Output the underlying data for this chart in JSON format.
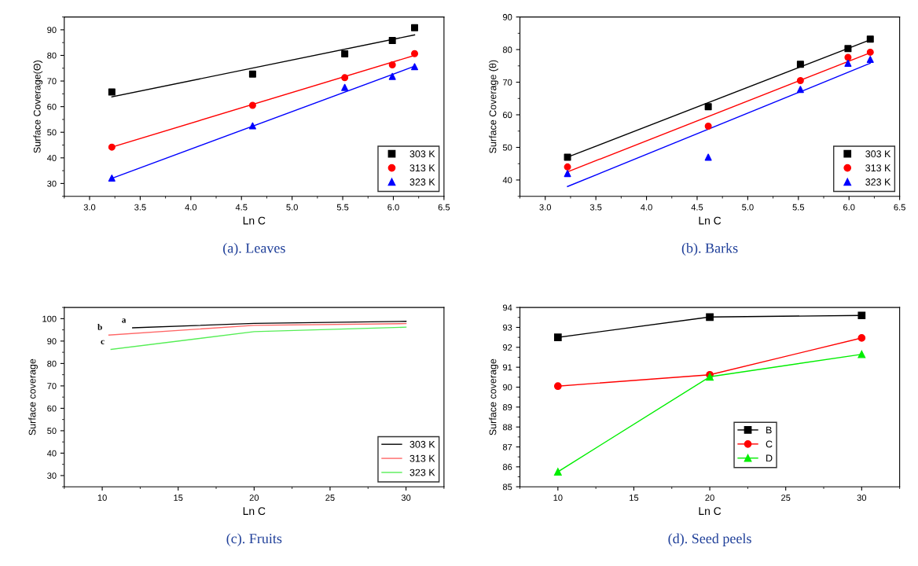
{
  "chart_data": [
    {
      "type": "scatter",
      "xlabel": "Ln C",
      "ylabel": "Surface Coverage(Θ)",
      "annotations": [
        "(a). Leaves"
      ],
      "xlim": [
        2.75,
        6.5
      ],
      "xticks": [
        {
          "value": 3,
          "label": "3.0"
        },
        3.5,
        {
          "value": 4,
          "label": "4.0"
        },
        4.5,
        {
          "value": 5,
          "label": "5.0"
        },
        5.5,
        {
          "value": 6,
          "label": "6.0"
        },
        6.5
      ],
      "ylim": [
        25,
        95
      ],
      "yticks": [
        30,
        40,
        50,
        60,
        70,
        80,
        90
      ],
      "legend": "lower right",
      "grid": false,
      "series": [
        {
          "name": "303 K",
          "color": "#000000",
          "marker": "square",
          "x": [
            3.22,
            4.61,
            5.52,
            5.99,
            6.21
          ],
          "values": [
            65.7,
            72.7,
            80.6,
            85.8,
            90.8
          ]
        },
        {
          "name": "313 K",
          "color": "#ff0000",
          "marker": "circle",
          "x": [
            3.22,
            4.61,
            5.52,
            5.99,
            6.21
          ],
          "values": [
            44.2,
            60.5,
            71.3,
            76.3,
            80.7
          ]
        },
        {
          "name": "323 K",
          "color": "#0000ff",
          "marker": "triangle",
          "x": [
            3.22,
            4.61,
            5.52,
            5.99,
            6.21
          ],
          "values": [
            32.1,
            52.5,
            67.5,
            71.8,
            75.6
          ]
        },
        {
          "type": "line",
          "color": "#000000",
          "x": [
            3.22,
            6.21
          ],
          "values": [
            63.8,
            88.0
          ]
        },
        {
          "type": "line",
          "color": "#ff0000",
          "x": [
            3.22,
            6.21
          ],
          "values": [
            44.2,
            80.0
          ]
        },
        {
          "type": "line",
          "color": "#0000ff",
          "x": [
            3.22,
            6.21
          ],
          "values": [
            32.0,
            75.8
          ]
        }
      ]
    },
    {
      "type": "scatter",
      "xlabel": "Ln C",
      "ylabel": "Surface Coverage (θ)",
      "annotations": [
        "(b). Barks"
      ],
      "xlim": [
        2.75,
        6.5
      ],
      "xticks": [
        {
          "value": 3,
          "label": "3.0"
        },
        3.5,
        {
          "value": 4,
          "label": "4.0"
        },
        4.5,
        {
          "value": 5,
          "label": "5.0"
        },
        5.5,
        {
          "value": 6,
          "label": "6.0"
        },
        6.5
      ],
      "ylim": [
        35,
        90
      ],
      "yticks": [
        40,
        50,
        60,
        70,
        80,
        90
      ],
      "legend": "lower right",
      "grid": false,
      "series": [
        {
          "name": "303 K",
          "color": "#000000",
          "marker": "square",
          "x": [
            3.22,
            4.61,
            5.52,
            5.99,
            6.21
          ],
          "values": [
            47.0,
            62.5,
            75.5,
            80.3,
            83.2
          ]
        },
        {
          "name": "313 K",
          "color": "#ff0000",
          "marker": "circle",
          "x": [
            3.22,
            4.61,
            5.52,
            5.99,
            6.21
          ],
          "values": [
            44.0,
            56.5,
            70.5,
            77.6,
            79.2
          ]
        },
        {
          "name": "323 K",
          "color": "#0000ff",
          "marker": "triangle",
          "x": [
            3.22,
            4.61,
            5.52,
            5.99,
            6.21
          ],
          "values": [
            42.0,
            47.0,
            67.8,
            75.8,
            77.0
          ]
        },
        {
          "type": "line",
          "color": "#000000",
          "x": [
            3.22,
            6.21
          ],
          "values": [
            47.0,
            83.0
          ]
        },
        {
          "type": "line",
          "color": "#ff0000",
          "x": [
            3.22,
            6.21
          ],
          "values": [
            42.5,
            79.0
          ]
        },
        {
          "type": "line",
          "color": "#0000ff",
          "x": [
            3.22,
            6.21
          ],
          "values": [
            38.0,
            75.8
          ]
        }
      ]
    },
    {
      "type": "line",
      "xlabel": "Ln C",
      "ylabel": "Surface coverage",
      "xlim": [
        7.5,
        32.5
      ],
      "xticks": [
        10,
        15,
        20,
        25,
        30
      ],
      "ylim": [
        25,
        105
      ],
      "yticks": [
        30,
        40,
        50,
        60,
        70,
        80,
        90,
        100
      ],
      "legend": "lower right",
      "grid": false,
      "marker": "none",
      "annotations": [
        "a",
        "b",
        "c",
        "(c). Fruits"
      ],
      "series": [
        {
          "name": "303 K",
          "color": "#000000",
          "x": [
            12.0,
            20,
            30
          ],
          "values": [
            95.9,
            97.9,
            98.8
          ]
        },
        {
          "name": "313 K",
          "color": "#ff6666",
          "x": [
            10.44,
            20,
            30
          ],
          "values": [
            92.7,
            97.0,
            97.8
          ]
        },
        {
          "name": "323 K",
          "color": "#55ee55",
          "x": [
            10.58,
            20,
            30
          ],
          "values": [
            86.3,
            94.2,
            96.2
          ]
        }
      ]
    },
    {
      "type": "line",
      "xlabel": "Ln C",
      "ylabel": "Surface coverage",
      "annotations": [
        "(d). Seed peels"
      ],
      "xlim": [
        7.5,
        32.5
      ],
      "xticks": [
        10,
        15,
        20,
        25,
        30
      ],
      "ylim": [
        85,
        94
      ],
      "yticks": [
        85,
        86,
        87,
        88,
        89,
        90,
        91,
        92,
        93,
        94
      ],
      "legend": "bottom",
      "grid": false,
      "x": [
        10,
        20,
        30
      ],
      "series": [
        {
          "name": "B",
          "color": "#000000",
          "marker": "square",
          "values": [
            92.5,
            93.52,
            93.6
          ]
        },
        {
          "name": "C",
          "color": "#ff0000",
          "marker": "circle",
          "values": [
            90.05,
            90.62,
            92.47
          ]
        },
        {
          "name": "D",
          "color": "#00ee00",
          "marker": "triangle",
          "values": [
            85.75,
            90.52,
            91.65
          ]
        }
      ]
    }
  ]
}
